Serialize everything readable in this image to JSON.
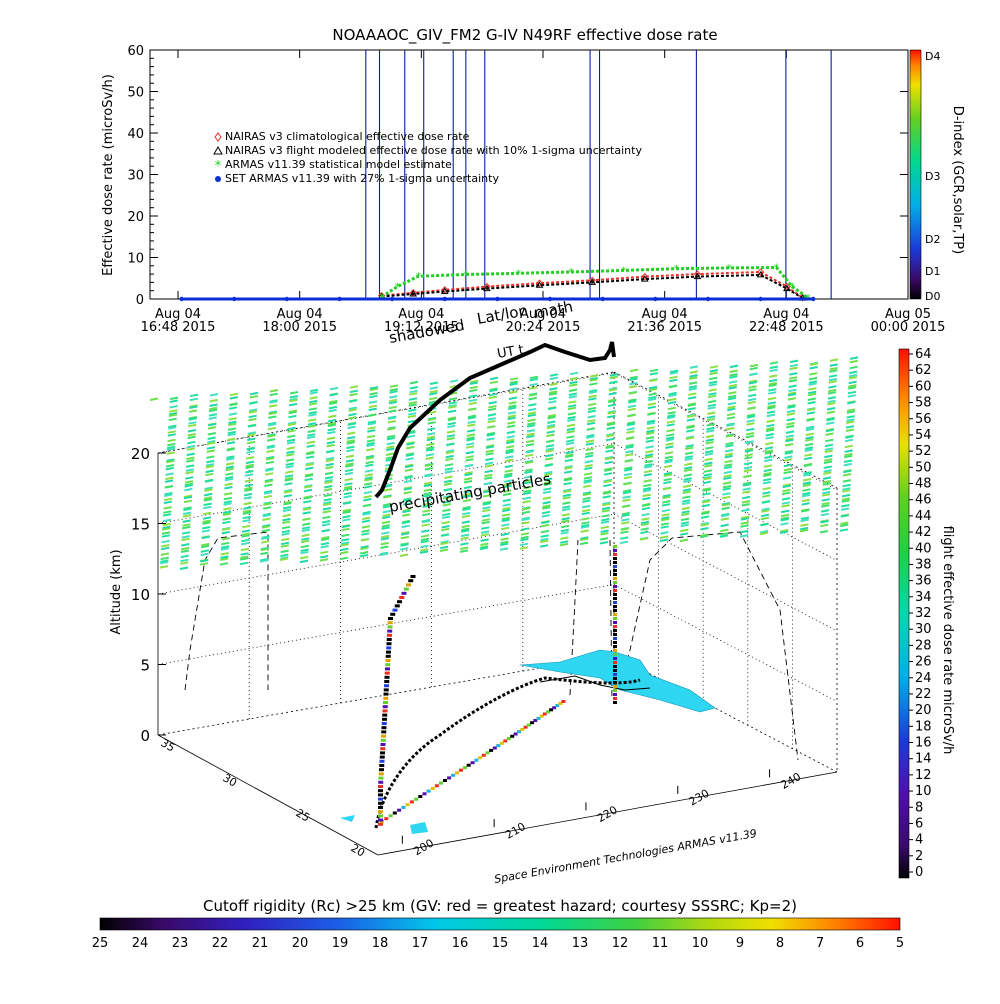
{
  "chart_data": [
    {
      "type": "scatter",
      "title": "NOAAAOC_GIV_FM2 G-IV    N49RF  effective dose rate",
      "ylabel": "Effective dose rate (microSv/h)",
      "ylim": [
        0,
        60
      ],
      "yticks": [
        "0",
        "10",
        "20",
        "30",
        "40",
        "50",
        "60"
      ],
      "x_ticks": [
        {
          "top": "Aug 04",
          "bottom": "16:48 2015"
        },
        {
          "top": "Aug 04",
          "bottom": "18:00 2015"
        },
        {
          "top": "Aug 04",
          "bottom": "19:12 2015"
        },
        {
          "top": "Aug 04",
          "bottom": "20:24 2015"
        },
        {
          "top": "Aug 04",
          "bottom": "21:36 2015"
        },
        {
          "top": "Aug 04",
          "bottom": "22:48 2015"
        },
        {
          "top": "Aug 05",
          "bottom": "00:00 2015"
        }
      ],
      "xlim_hours": [
        16.8,
        24.0
      ],
      "legend": [
        {
          "label": "NAIRAS v3 climatological effective dose rate",
          "color": "#e8302a",
          "marker": "diamond"
        },
        {
          "label": "NAIRAS v3 flight modeled effective dose rate with 10% 1-sigma uncertainty",
          "color": "#000000",
          "marker": "triangle"
        },
        {
          "label": "ARMAS v11.39 statistical model estimate",
          "color": "#22d022",
          "marker": "asterisk"
        },
        {
          "label": "SET ARMAS v11.39 with 27% 1-sigma uncertainty",
          "color": "#0a2fd6",
          "marker": "dot"
        }
      ],
      "series": [
        {
          "name": "NAIRAS v3 climatological effective dose rate",
          "color": "#e8302a",
          "x": [
            19.0,
            19.3,
            19.6,
            20.0,
            20.5,
            21.0,
            21.5,
            22.0,
            22.6,
            22.85,
            23.0
          ],
          "y": [
            0.8,
            1.5,
            2.2,
            3.0,
            3.8,
            4.5,
            5.4,
            6.0,
            6.5,
            3.0,
            0.3
          ]
        },
        {
          "name": "NAIRAS v3 flight modeled effective dose rate with 10% 1-sigma uncertainty",
          "color": "#000000",
          "x": [
            19.0,
            19.3,
            19.6,
            20.0,
            20.5,
            21.0,
            21.5,
            22.0,
            22.6,
            22.85,
            23.0
          ],
          "y": [
            0.6,
            1.2,
            1.8,
            2.5,
            3.3,
            4.0,
            4.8,
            5.4,
            5.8,
            2.5,
            0.2
          ]
        },
        {
          "name": "ARMAS v11.39 statistical model estimate",
          "color": "#22d022",
          "x": [
            19.0,
            19.15,
            19.35,
            19.8,
            20.3,
            20.8,
            21.3,
            21.8,
            22.3,
            22.75,
            22.9,
            23.05
          ],
          "y": [
            0.5,
            3.0,
            5.5,
            5.9,
            6.2,
            6.5,
            6.9,
            7.3,
            7.5,
            7.6,
            3.0,
            0.3
          ]
        },
        {
          "name": "SET ARMAS v11.39 with 27% 1-sigma uncertainty",
          "color": "#0a2fd6",
          "x": [
            17.1,
            17.6,
            18.1,
            18.6,
            19.1,
            19.6,
            20.1,
            20.6,
            21.1,
            21.6,
            22.1,
            22.6,
            23.1
          ],
          "y": [
            0,
            0,
            0,
            0,
            0,
            0,
            0,
            0,
            0,
            0,
            0,
            0,
            0
          ]
        }
      ],
      "vertical_markers_hours": [
        18.85,
        18.98,
        19.22,
        19.4,
        19.68,
        19.8,
        19.98,
        20.98,
        21.07,
        21.99,
        22.84,
        23.27
      ],
      "dindex_colorbar": {
        "title": "D-index (GCR,solar,TP)",
        "labels": [
          "D4",
          "D3",
          "D2",
          "D1",
          "D0"
        ],
        "values": [
          4,
          3,
          2,
          1,
          0
        ]
      }
    },
    {
      "type": "scatter",
      "xlabel": "",
      "ylabel": "Altitude (km)",
      "zticks": [
        "0",
        "5",
        "10",
        "15",
        "20"
      ],
      "lat_ticks": [
        "20",
        "25",
        "30",
        "35"
      ],
      "lon_ticks": [
        "200",
        "210",
        "220",
        "230",
        "240"
      ],
      "annotations": [
        "shadowed",
        "Lat/lon",
        "math",
        "UT t",
        "precipitating particles",
        "Space Environment Technologies ARMAS v11.39"
      ],
      "grid": true,
      "dose_colorbar": {
        "title": "flight effective dose rate microSv/h",
        "ticks": [
          "64",
          "62",
          "60",
          "58",
          "56",
          "54",
          "52",
          "50",
          "48",
          "46",
          "44",
          "42",
          "40",
          "38",
          "36",
          "34",
          "32",
          "30",
          "28",
          "26",
          "24",
          "22",
          "20",
          "18",
          "16",
          "14",
          "12",
          "10",
          "8",
          "6",
          "4",
          "2",
          "0"
        ]
      },
      "cutoff_colorbar": {
        "title": "Cutoff rigidity (Rc) >25 km (GV: red = greatest hazard; courtesy SSSRC; Kp=2)",
        "ticks": [
          "25",
          "24",
          "23",
          "22",
          "21",
          "20",
          "19",
          "18",
          "17",
          "16",
          "15",
          "14",
          "13",
          "12",
          "11",
          "10",
          "9",
          "8",
          "7",
          "6",
          "5"
        ]
      }
    }
  ]
}
